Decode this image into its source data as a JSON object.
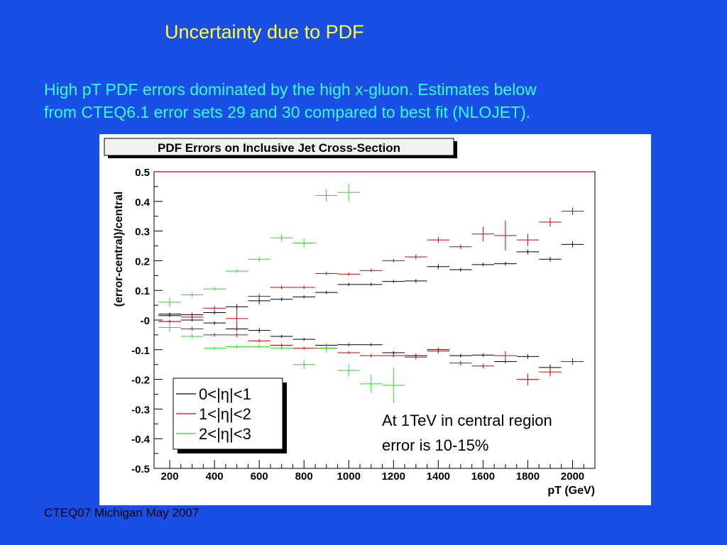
{
  "slide": {
    "title": "Uncertainty due to PDF",
    "subtitle_lines": [
      "High pT PDF errors dominated by the high x-gluon. Estimates below",
      "from CTEQ6.1 error sets 29 and 30 compared to best fit (NLOJET)."
    ],
    "footer": "CTEQ07 Michigan May 2007"
  },
  "colors": {
    "background": "#1a4fe6",
    "title": "#ffff33",
    "subtitle": "#33ffff"
  },
  "chart_data": {
    "type": "scatter",
    "title": "PDF Errors on Inclusive Jet Cross-Section",
    "xlabel": "pT (GeV)",
    "ylabel": "(error-central)/central",
    "xlim": [
      130,
      2100
    ],
    "ylim": [
      -0.5,
      0.5
    ],
    "x_ticks": [
      200,
      400,
      600,
      800,
      1000,
      1200,
      1400,
      1600,
      1800,
      2000
    ],
    "y_ticks": [
      0.5,
      0.4,
      0.3,
      0.2,
      0.1,
      0.0,
      -0.1,
      -0.2,
      -0.3,
      -0.4,
      -0.5
    ],
    "y_tick_labels": [
      "0.5",
      "0.4",
      "0.3",
      "0.2",
      "0.1",
      "-0",
      "-0.1",
      "-0.2",
      "-0.3",
      "-0.4",
      "-0.5"
    ],
    "legend_position": "bottom-left",
    "annotation": [
      "At 1TeV in central region",
      "error is 10-15%"
    ],
    "series": [
      {
        "name": "0<|η|<1",
        "legend_label": "0<|η|<1",
        "color": "#000000",
        "upper": [
          [
            150,
            250,
            0.02,
            0.005
          ],
          [
            250,
            350,
            0.018,
            0.005
          ],
          [
            350,
            450,
            0.025,
            0.006
          ],
          [
            450,
            550,
            0.045,
            0.008
          ],
          [
            550,
            650,
            0.065,
            0.012
          ],
          [
            650,
            750,
            0.07,
            0.006
          ],
          [
            750,
            850,
            0.078,
            0.005
          ],
          [
            850,
            950,
            0.093,
            0.005
          ],
          [
            950,
            1050,
            0.12,
            0.005
          ],
          [
            1050,
            1150,
            0.12,
            0.005
          ],
          [
            1150,
            1250,
            0.13,
            0.005
          ],
          [
            1250,
            1350,
            0.132,
            0.006
          ],
          [
            1350,
            1450,
            0.18,
            0.008
          ],
          [
            1450,
            1550,
            0.17,
            0.006
          ],
          [
            1550,
            1650,
            0.187,
            0.006
          ],
          [
            1650,
            1750,
            0.19,
            0.006
          ],
          [
            1750,
            1850,
            0.23,
            0.008
          ],
          [
            1850,
            1950,
            0.205,
            0.008
          ],
          [
            1950,
            2050,
            0.255,
            0.01
          ]
        ],
        "lower": [
          [
            150,
            250,
            0.015,
            0.005
          ],
          [
            250,
            350,
            0.0,
            0.005
          ],
          [
            350,
            450,
            -0.01,
            0.006
          ],
          [
            450,
            550,
            -0.03,
            0.008
          ],
          [
            550,
            650,
            -0.035,
            0.008
          ],
          [
            650,
            750,
            -0.055,
            0.005
          ],
          [
            750,
            850,
            -0.065,
            0.005
          ],
          [
            850,
            950,
            -0.085,
            0.005
          ],
          [
            950,
            1050,
            -0.083,
            0.005
          ],
          [
            1050,
            1150,
            -0.083,
            0.005
          ],
          [
            1150,
            1250,
            -0.11,
            0.005
          ],
          [
            1250,
            1350,
            -0.12,
            0.006
          ],
          [
            1350,
            1450,
            -0.1,
            0.006
          ],
          [
            1450,
            1550,
            -0.12,
            0.006
          ],
          [
            1550,
            1650,
            -0.118,
            0.006
          ],
          [
            1650,
            1750,
            -0.14,
            0.006
          ],
          [
            1750,
            1850,
            -0.123,
            0.008
          ],
          [
            1850,
            1950,
            -0.16,
            0.01
          ],
          [
            1950,
            2050,
            -0.14,
            0.01
          ]
        ]
      },
      {
        "name": "1<|η|<2",
        "legend_label": "1<|η|<2",
        "color": "#cc0000",
        "upper": [
          [
            150,
            250,
            -0.005,
            0.006
          ],
          [
            250,
            350,
            0.01,
            0.006
          ],
          [
            350,
            450,
            0.04,
            0.008
          ],
          [
            450,
            550,
            0.005,
            0.04
          ],
          [
            550,
            650,
            0.08,
            0.008
          ],
          [
            650,
            750,
            0.11,
            0.006
          ],
          [
            750,
            850,
            0.11,
            0.006
          ],
          [
            850,
            950,
            0.157,
            0.006
          ],
          [
            950,
            1050,
            0.155,
            0.006
          ],
          [
            1050,
            1150,
            0.167,
            0.006
          ],
          [
            1150,
            1250,
            0.2,
            0.006
          ],
          [
            1250,
            1350,
            0.213,
            0.008
          ],
          [
            1350,
            1450,
            0.27,
            0.01
          ],
          [
            1450,
            1550,
            0.247,
            0.008
          ],
          [
            1550,
            1650,
            0.29,
            0.025
          ],
          [
            1650,
            1750,
            0.285,
            0.05
          ],
          [
            1750,
            1850,
            0.27,
            0.02
          ],
          [
            1850,
            1950,
            0.33,
            0.015
          ],
          [
            1950,
            2050,
            0.367,
            0.012
          ]
        ],
        "lower": [
          [
            150,
            250,
            -0.005,
            0.006
          ],
          [
            250,
            350,
            -0.03,
            0.006
          ],
          [
            350,
            450,
            -0.05,
            0.006
          ],
          [
            450,
            550,
            -0.05,
            0.008
          ],
          [
            550,
            650,
            -0.07,
            0.006
          ],
          [
            650,
            750,
            -0.085,
            0.006
          ],
          [
            750,
            850,
            -0.095,
            0.005
          ],
          [
            850,
            950,
            -0.095,
            0.005
          ],
          [
            950,
            1050,
            -0.11,
            0.005
          ],
          [
            1050,
            1150,
            -0.12,
            0.006
          ],
          [
            1150,
            1250,
            -0.12,
            0.006
          ],
          [
            1250,
            1350,
            -0.125,
            0.008
          ],
          [
            1350,
            1450,
            -0.105,
            0.008
          ],
          [
            1450,
            1550,
            -0.145,
            0.008
          ],
          [
            1550,
            1650,
            -0.155,
            0.008
          ],
          [
            1650,
            1750,
            -0.12,
            0.015
          ],
          [
            1750,
            1850,
            -0.2,
            0.02
          ],
          [
            1850,
            1950,
            -0.175,
            0.015
          ],
          [
            1950,
            2050,
            -0.14,
            0.01
          ]
        ]
      },
      {
        "name": "2<|η|<3",
        "legend_label": "2<|η|<3",
        "color": "#22dd22",
        "upper": [
          [
            150,
            250,
            0.06,
            0.015
          ],
          [
            250,
            350,
            0.085,
            0.008
          ],
          [
            350,
            450,
            0.105,
            0.006
          ],
          [
            450,
            550,
            0.165,
            0.006
          ],
          [
            550,
            650,
            0.205,
            0.008
          ],
          [
            650,
            750,
            0.277,
            0.012
          ],
          [
            750,
            850,
            0.26,
            0.015
          ],
          [
            850,
            950,
            0.42,
            0.02
          ],
          [
            950,
            1050,
            0.43,
            0.03
          ]
        ],
        "lower": [
          [
            150,
            250,
            -0.025,
            0.015
          ],
          [
            250,
            350,
            -0.055,
            0.008
          ],
          [
            350,
            450,
            -0.095,
            0.006
          ],
          [
            450,
            550,
            -0.09,
            0.006
          ],
          [
            550,
            650,
            -0.09,
            0.006
          ],
          [
            650,
            750,
            -0.095,
            0.006
          ],
          [
            750,
            850,
            -0.15,
            0.015
          ],
          [
            850,
            950,
            -0.095,
            0.015
          ],
          [
            950,
            1050,
            -0.17,
            0.02
          ],
          [
            1050,
            1150,
            -0.215,
            0.03
          ],
          [
            1150,
            1250,
            -0.22,
            0.06
          ]
        ]
      }
    ]
  }
}
